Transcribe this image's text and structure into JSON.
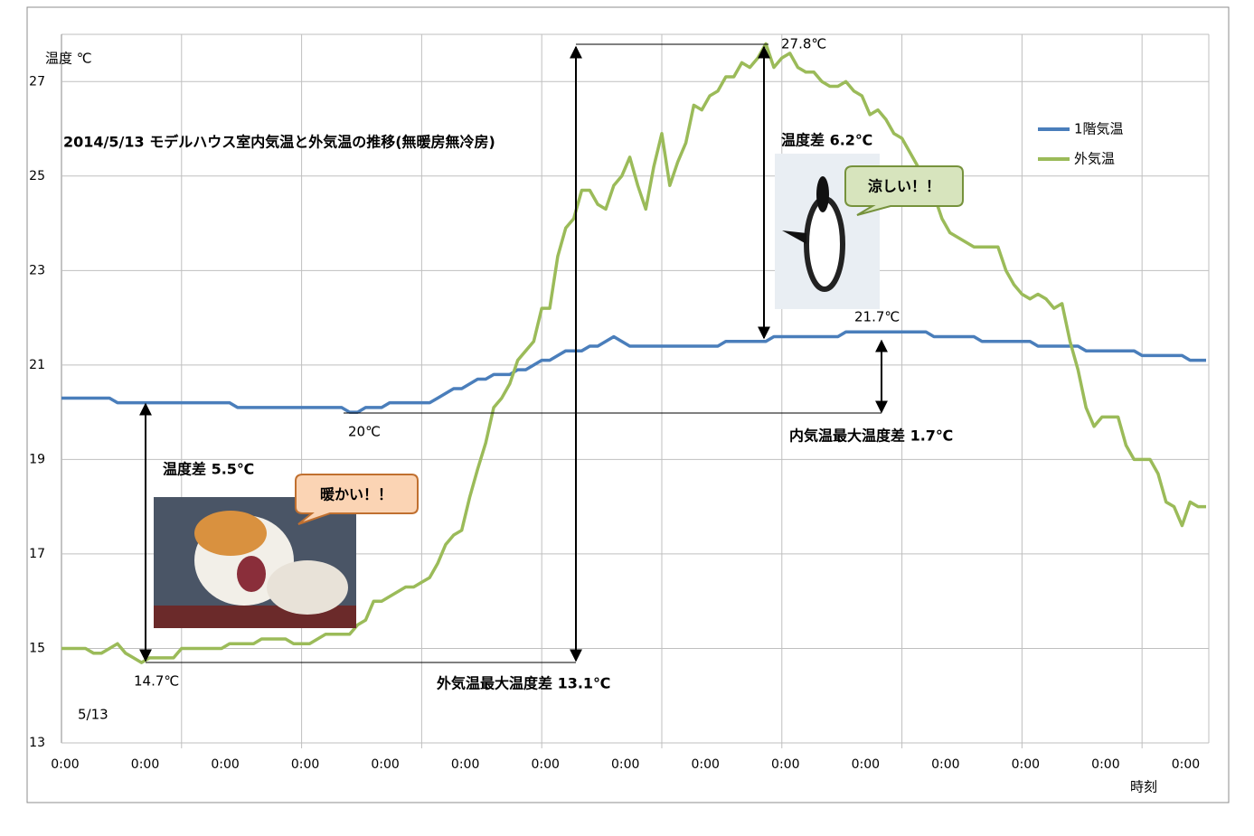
{
  "chart_data": {
    "type": "line",
    "title": "2014/5/13  モデルハウス室内気温と外気温の推移(無暖房無冷房)",
    "y_label": "温度  ℃",
    "x_label": "時刻",
    "date_label": "5/13",
    "categories": [
      "0:00",
      null,
      null,
      null,
      null,
      null,
      null,
      null,
      null,
      null,
      "0:00",
      null,
      null,
      null,
      null,
      null,
      null,
      null,
      null,
      null,
      "0:00",
      null,
      null,
      null,
      null,
      null,
      null,
      null,
      null,
      null,
      "0:00",
      null,
      null,
      null,
      null,
      null,
      null,
      null,
      null,
      null,
      "0:00",
      null,
      null,
      null,
      null,
      null,
      null,
      null,
      null,
      null,
      "0:00",
      null,
      null,
      null,
      null,
      null,
      null,
      null,
      null,
      null,
      "0:00",
      null,
      null,
      null,
      null,
      null,
      null,
      null,
      null,
      null,
      "0:00",
      null,
      null,
      null,
      null,
      null,
      null,
      null,
      null,
      null,
      "0:00",
      null,
      null,
      null,
      null,
      null,
      null,
      null,
      null,
      null,
      "0:00",
      null,
      null,
      null,
      null,
      null,
      null,
      null,
      null,
      null,
      "0:00",
      null,
      null,
      null,
      null,
      null,
      null,
      null,
      null,
      null,
      "0:00",
      null,
      null,
      null,
      null,
      null,
      null,
      null,
      null,
      null,
      "0:00",
      null,
      null,
      null,
      null,
      null,
      null,
      null,
      null,
      null,
      "0:00",
      null,
      null,
      null,
      null,
      null,
      null,
      null,
      null,
      null,
      "0:00",
      null,
      null,
      null
    ],
    "series": [
      {
        "name": "1階気温",
        "color": "#4a7ebb",
        "values": [
          20.3,
          20.3,
          20.3,
          20.3,
          20.3,
          20.3,
          20.3,
          20.2,
          20.2,
          20.2,
          20.2,
          20.2,
          20.2,
          20.2,
          20.2,
          20.2,
          20.2,
          20.2,
          20.2,
          20.2,
          20.2,
          20.2,
          20.1,
          20.1,
          20.1,
          20.1,
          20.1,
          20.1,
          20.1,
          20.1,
          20.1,
          20.1,
          20.1,
          20.1,
          20.1,
          20.1,
          20.0,
          20.0,
          20.1,
          20.1,
          20.1,
          20.2,
          20.2,
          20.2,
          20.2,
          20.2,
          20.2,
          20.3,
          20.4,
          20.5,
          20.5,
          20.6,
          20.7,
          20.7,
          20.8,
          20.8,
          20.8,
          20.9,
          20.9,
          21.0,
          21.1,
          21.1,
          21.2,
          21.3,
          21.3,
          21.3,
          21.4,
          21.4,
          21.5,
          21.6,
          21.5,
          21.4,
          21.4,
          21.4,
          21.4,
          21.4,
          21.4,
          21.4,
          21.4,
          21.4,
          21.4,
          21.4,
          21.4,
          21.5,
          21.5,
          21.5,
          21.5,
          21.5,
          21.5,
          21.6,
          21.6,
          21.6,
          21.6,
          21.6,
          21.6,
          21.6,
          21.6,
          21.6,
          21.7,
          21.7,
          21.7,
          21.7,
          21.7,
          21.7,
          21.7,
          21.7,
          21.7,
          21.7,
          21.7,
          21.6,
          21.6,
          21.6,
          21.6,
          21.6,
          21.6,
          21.5,
          21.5,
          21.5,
          21.5,
          21.5,
          21.5,
          21.5,
          21.4,
          21.4,
          21.4,
          21.4,
          21.4,
          21.4,
          21.3,
          21.3,
          21.3,
          21.3,
          21.3,
          21.3,
          21.3,
          21.2,
          21.2,
          21.2,
          21.2,
          21.2,
          21.2,
          21.1,
          21.1,
          21.1
        ]
      },
      {
        "name": "外気温",
        "color": "#9bbb59",
        "values": [
          15.0,
          15.0,
          15.0,
          15.0,
          14.9,
          14.9,
          15.0,
          15.1,
          14.9,
          14.8,
          14.7,
          14.8,
          14.8,
          14.8,
          14.8,
          15.0,
          15.0,
          15.0,
          15.0,
          15.0,
          15.0,
          15.1,
          15.1,
          15.1,
          15.1,
          15.2,
          15.2,
          15.2,
          15.2,
          15.1,
          15.1,
          15.1,
          15.2,
          15.3,
          15.3,
          15.3,
          15.3,
          15.5,
          15.6,
          16.0,
          16.0,
          16.1,
          16.2,
          16.3,
          16.3,
          16.4,
          16.5,
          16.8,
          17.2,
          17.4,
          17.5,
          18.2,
          18.8,
          19.35,
          20.1,
          20.3,
          20.6,
          21.1,
          21.3,
          21.5,
          22.2,
          22.2,
          23.3,
          23.9,
          24.1,
          24.7,
          24.7,
          24.4,
          24.3,
          24.8,
          25.0,
          25.4,
          24.8,
          24.3,
          25.2,
          25.9,
          24.8,
          25.3,
          25.7,
          26.5,
          26.4,
          26.7,
          26.8,
          27.1,
          27.1,
          27.4,
          27.3,
          27.5,
          27.8,
          27.3,
          27.5,
          27.6,
          27.3,
          27.2,
          27.2,
          27.0,
          26.9,
          26.9,
          27.0,
          26.8,
          26.7,
          26.3,
          26.4,
          26.2,
          25.9,
          25.8,
          25.5,
          25.2,
          24.9,
          24.6,
          24.1,
          23.8,
          23.7,
          23.6,
          23.5,
          23.5,
          23.5,
          23.5,
          23.0,
          22.7,
          22.5,
          22.4,
          22.5,
          22.4,
          22.2,
          22.3,
          21.5,
          20.9,
          20.1,
          19.7,
          19.9,
          19.9,
          19.9,
          19.3,
          19.0,
          19.0,
          19.0,
          18.7,
          18.1,
          18.0,
          17.6,
          18.1,
          18.0,
          18.0
        ]
      }
    ],
    "ylim": [
      13,
      28
    ],
    "yticks": [
      13,
      15,
      17,
      19,
      21,
      23,
      25,
      27
    ],
    "grid": true,
    "annotations": {
      "outdoor_max": "27.8℃",
      "indoor_max": "21.7℃",
      "indoor_min": "20℃",
      "outdoor_min": "14.7℃",
      "diff_day": "温度差  6.2℃",
      "diff_night": "温度差  5.5℃",
      "indoor_range": "内気温最大温度差  1.7℃",
      "outdoor_range": "外気温最大温度差  13.1℃",
      "cool": "涼しい！！",
      "warm": "暖かい！！"
    }
  }
}
